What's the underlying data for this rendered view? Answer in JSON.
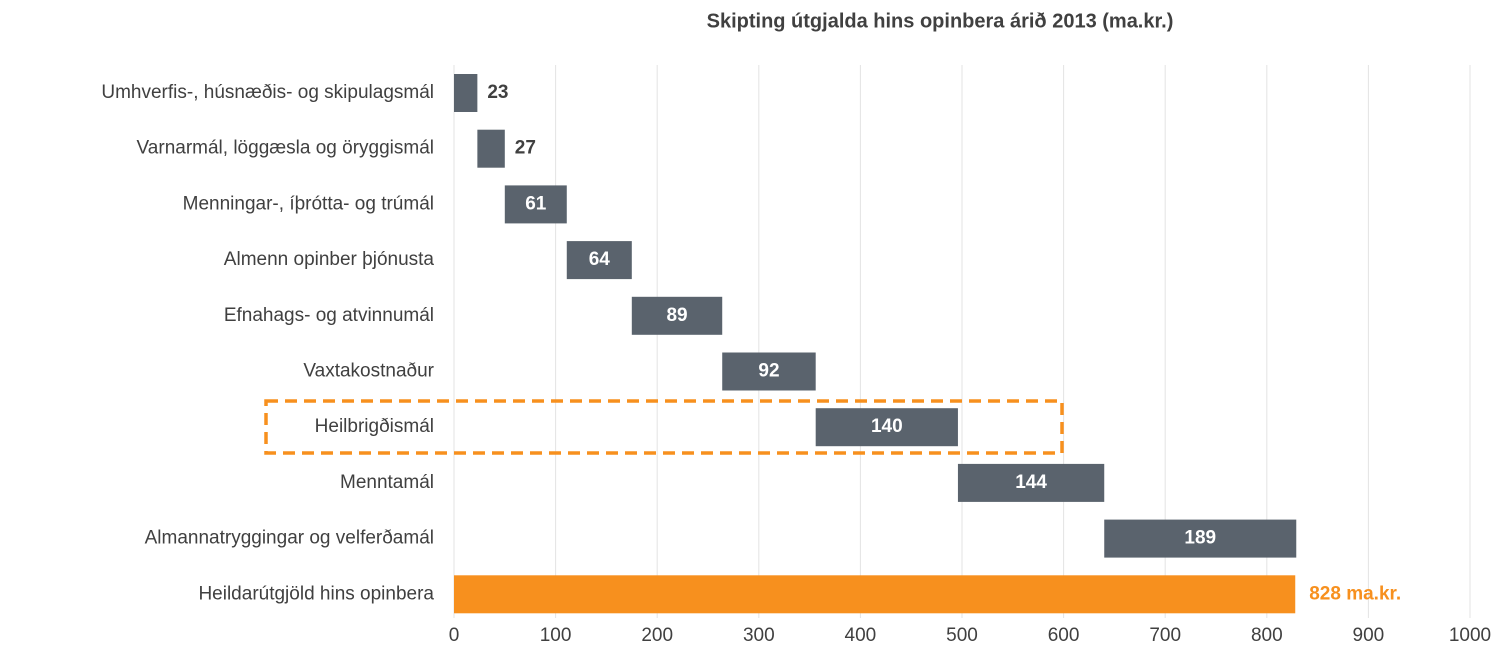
{
  "chart_data": {
    "type": "waterfall",
    "title": "Skipting útgjalda hins opinbera árið 2013 (ma.kr.)",
    "categories": [
      "Umhverfis-, húsnæðis- og skipulagsmál",
      "Varnarmál, löggæsla og öryggismál",
      "Menningar-, íþrótta- og trúmál",
      "Almenn opinber þjónusta",
      "Efnahags- og atvinnumál",
      "Vaxtakostnaður",
      "Heilbrigðismál",
      "Menntamál",
      "Almannatryggingar og velferðamál"
    ],
    "values": [
      23,
      27,
      61,
      64,
      89,
      92,
      140,
      144,
      189
    ],
    "color": "#5a636d",
    "total": {
      "category": "Heildarútgjöld hins opinbera",
      "value": 828,
      "value_label": "828 ma.kr.",
      "color": "#f7901e"
    },
    "xlim": [
      0,
      1000
    ],
    "xticks": [
      0,
      100,
      200,
      300,
      400,
      500,
      600,
      700,
      800,
      900,
      1000
    ],
    "grid": true
  }
}
